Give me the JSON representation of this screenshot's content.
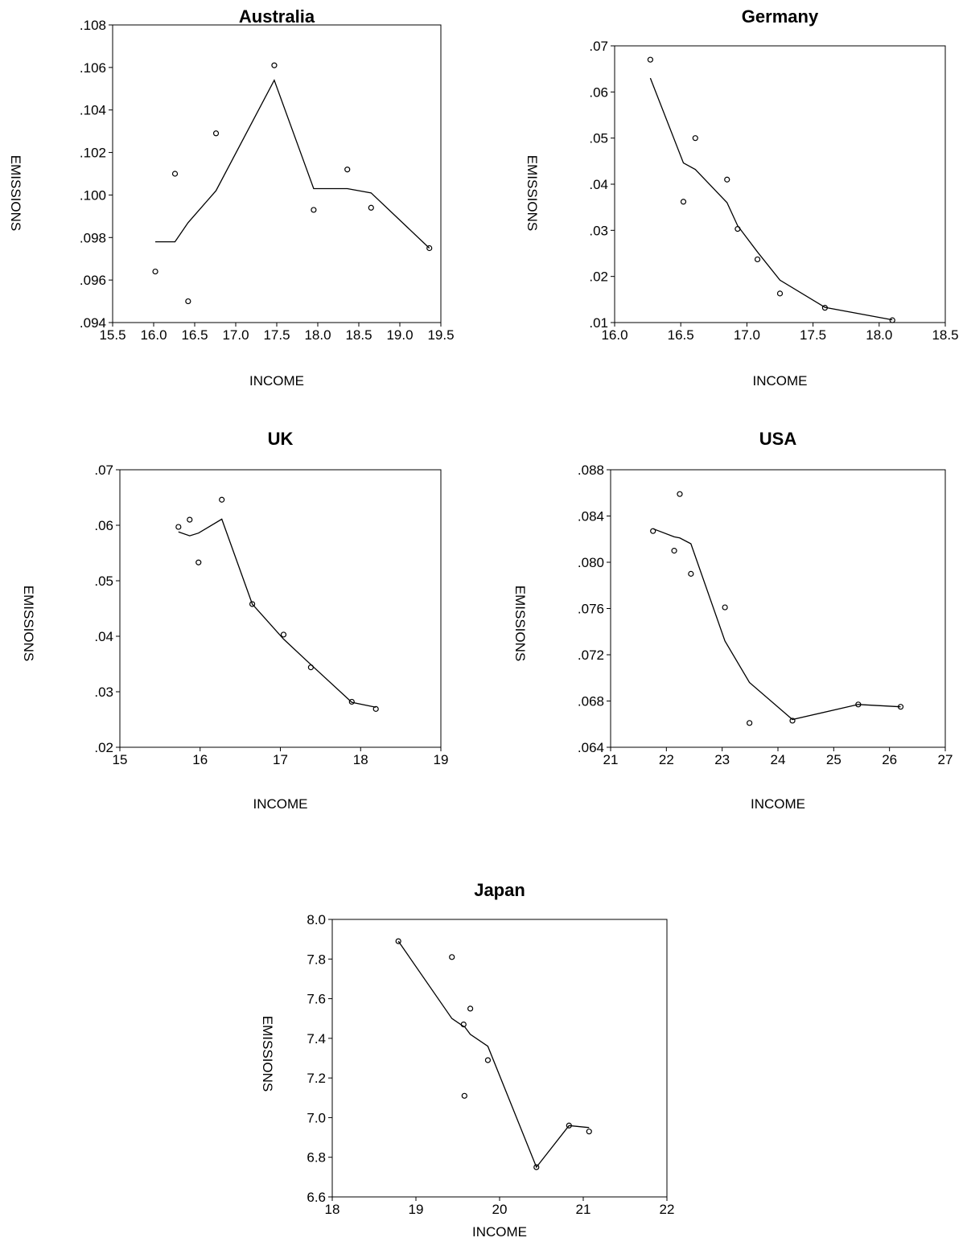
{
  "chart_data": [
    {
      "type": "scatter",
      "title": "Australia",
      "xlabel": "INCOME",
      "ylabel": "EMISSIONS",
      "xlim": [
        15.5,
        19.5
      ],
      "ylim": [
        0.094,
        0.108
      ],
      "xticks": [
        "15.5",
        "16.0",
        "16.5",
        "17.0",
        "17.5",
        "18.0",
        "18.5",
        "19.0",
        "19.5"
      ],
      "xtick_values": [
        15.5,
        16.0,
        16.5,
        17.0,
        17.5,
        18.0,
        18.5,
        19.0,
        19.5
      ],
      "yticks": [
        ".094",
        ".096",
        ".098",
        ".100",
        ".102",
        ".104",
        ".106",
        ".108"
      ],
      "ytick_values": [
        0.094,
        0.096,
        0.098,
        0.1,
        0.102,
        0.104,
        0.106,
        0.108
      ],
      "series": [
        {
          "kind": "points",
          "x": [
            16.02,
            16.26,
            16.42,
            16.76,
            17.47,
            17.95,
            18.36,
            18.65,
            19.36
          ],
          "y": [
            0.0964,
            0.101,
            0.095,
            0.1029,
            0.1061,
            0.0993,
            0.1012,
            0.0994,
            0.0975
          ]
        },
        {
          "kind": "fit",
          "x": [
            16.02,
            16.26,
            16.42,
            16.76,
            17.47,
            17.95,
            18.36,
            18.65,
            19.36
          ],
          "y": [
            0.0978,
            0.0978,
            0.0987,
            0.1002,
            0.1054,
            0.1003,
            0.1003,
            0.1001,
            0.0975
          ]
        }
      ]
    },
    {
      "type": "scatter",
      "title": "Germany",
      "xlabel": "INCOME",
      "ylabel": "EMISSIONS",
      "xlim": [
        16.0,
        18.5
      ],
      "ylim": [
        0.01,
        0.07
      ],
      "xticks": [
        "16.0",
        "16.5",
        "17.0",
        "17.5",
        "18.0",
        "18.5"
      ],
      "xtick_values": [
        16.0,
        16.5,
        17.0,
        17.5,
        18.0,
        18.5
      ],
      "yticks": [
        ".01",
        ".02",
        ".03",
        ".04",
        ".05",
        ".06",
        ".07"
      ],
      "ytick_values": [
        0.01,
        0.02,
        0.03,
        0.04,
        0.05,
        0.06,
        0.07
      ],
      "series": [
        {
          "kind": "points",
          "x": [
            16.27,
            16.52,
            16.61,
            16.85,
            16.93,
            17.08,
            17.25,
            17.59,
            18.1
          ],
          "y": [
            0.067,
            0.0362,
            0.05,
            0.041,
            0.0303,
            0.0237,
            0.0163,
            0.0132,
            0.0105
          ]
        },
        {
          "kind": "fit",
          "x": [
            16.27,
            16.52,
            16.61,
            16.85,
            16.93,
            17.08,
            17.25,
            17.59,
            18.1
          ],
          "y": [
            0.063,
            0.0446,
            0.0432,
            0.036,
            0.031,
            0.0253,
            0.0192,
            0.0133,
            0.0106
          ]
        }
      ]
    },
    {
      "type": "scatter",
      "title": "UK",
      "xlabel": "INCOME",
      "ylabel": "EMISSIONS",
      "xlim": [
        15,
        19
      ],
      "ylim": [
        0.02,
        0.07
      ],
      "xticks": [
        "15",
        "16",
        "17",
        "18",
        "19"
      ],
      "xtick_values": [
        15,
        16,
        17,
        18,
        19
      ],
      "yticks": [
        ".02",
        ".03",
        ".04",
        ".05",
        ".06",
        ".07"
      ],
      "ytick_values": [
        0.02,
        0.03,
        0.04,
        0.05,
        0.06,
        0.07
      ],
      "series": [
        {
          "kind": "points",
          "x": [
            15.73,
            15.87,
            15.98,
            16.27,
            16.65,
            17.04,
            17.38,
            17.89,
            18.19
          ],
          "y": [
            0.0597,
            0.061,
            0.0533,
            0.0646,
            0.0458,
            0.0403,
            0.0344,
            0.0282,
            0.0269
          ]
        },
        {
          "kind": "fit",
          "x": [
            15.73,
            15.87,
            15.98,
            16.27,
            16.65,
            17.04,
            17.38,
            17.89,
            18.19
          ],
          "y": [
            0.0588,
            0.0581,
            0.0586,
            0.0611,
            0.0458,
            0.0395,
            0.0349,
            0.0281,
            0.0272
          ]
        }
      ]
    },
    {
      "type": "scatter",
      "title": "USA",
      "xlabel": "INCOME",
      "ylabel": "EMISSIONS",
      "xlim": [
        21,
        27
      ],
      "ylim": [
        0.064,
        0.088
      ],
      "xticks": [
        "21",
        "22",
        "23",
        "24",
        "25",
        "26",
        "27"
      ],
      "xtick_values": [
        21,
        22,
        23,
        24,
        25,
        26,
        27
      ],
      "yticks": [
        ".064",
        ".068",
        ".072",
        ".076",
        ".080",
        ".084",
        ".088"
      ],
      "ytick_values": [
        0.064,
        0.068,
        0.072,
        0.076,
        0.08,
        0.084,
        0.088
      ],
      "series": [
        {
          "kind": "points",
          "x": [
            21.76,
            22.14,
            22.24,
            22.44,
            23.05,
            23.49,
            24.26,
            25.44,
            26.2
          ],
          "y": [
            0.0827,
            0.081,
            0.0859,
            0.079,
            0.0761,
            0.0661,
            0.0663,
            0.0677,
            0.0675
          ]
        },
        {
          "kind": "fit",
          "x": [
            21.76,
            22.14,
            22.24,
            22.44,
            23.05,
            23.49,
            24.26,
            25.44,
            26.2
          ],
          "y": [
            0.0829,
            0.0822,
            0.0821,
            0.0816,
            0.0732,
            0.0696,
            0.0664,
            0.0677,
            0.0675
          ]
        }
      ]
    },
    {
      "type": "scatter",
      "title": "Japan",
      "xlabel": "INCOME",
      "ylabel": "EMISSIONS",
      "xlim": [
        18,
        22
      ],
      "ylim": [
        6.6,
        8.0
      ],
      "xticks": [
        "18",
        "19",
        "20",
        "21",
        "22"
      ],
      "xtick_values": [
        18,
        19,
        20,
        21,
        22
      ],
      "yticks": [
        "6.6",
        "6.8",
        "7.0",
        "7.2",
        "7.4",
        "7.6",
        "7.8",
        "8.0"
      ],
      "ytick_values": [
        6.6,
        6.8,
        7.0,
        7.2,
        7.4,
        7.6,
        7.8,
        8.0
      ],
      "series": [
        {
          "kind": "points",
          "x": [
            18.79,
            19.43,
            19.57,
            19.65,
            19.58,
            19.86,
            20.44,
            20.83,
            21.07
          ],
          "y": [
            7.89,
            7.81,
            7.47,
            7.55,
            7.11,
            7.29,
            6.75,
            6.96,
            6.93
          ]
        },
        {
          "kind": "fit",
          "x": [
            18.79,
            19.43,
            19.57,
            19.65,
            19.58,
            19.86,
            20.44,
            20.83,
            21.07
          ],
          "y": [
            7.89,
            7.5,
            7.46,
            7.42,
            7.46,
            7.36,
            6.75,
            6.96,
            6.95
          ]
        }
      ]
    }
  ]
}
